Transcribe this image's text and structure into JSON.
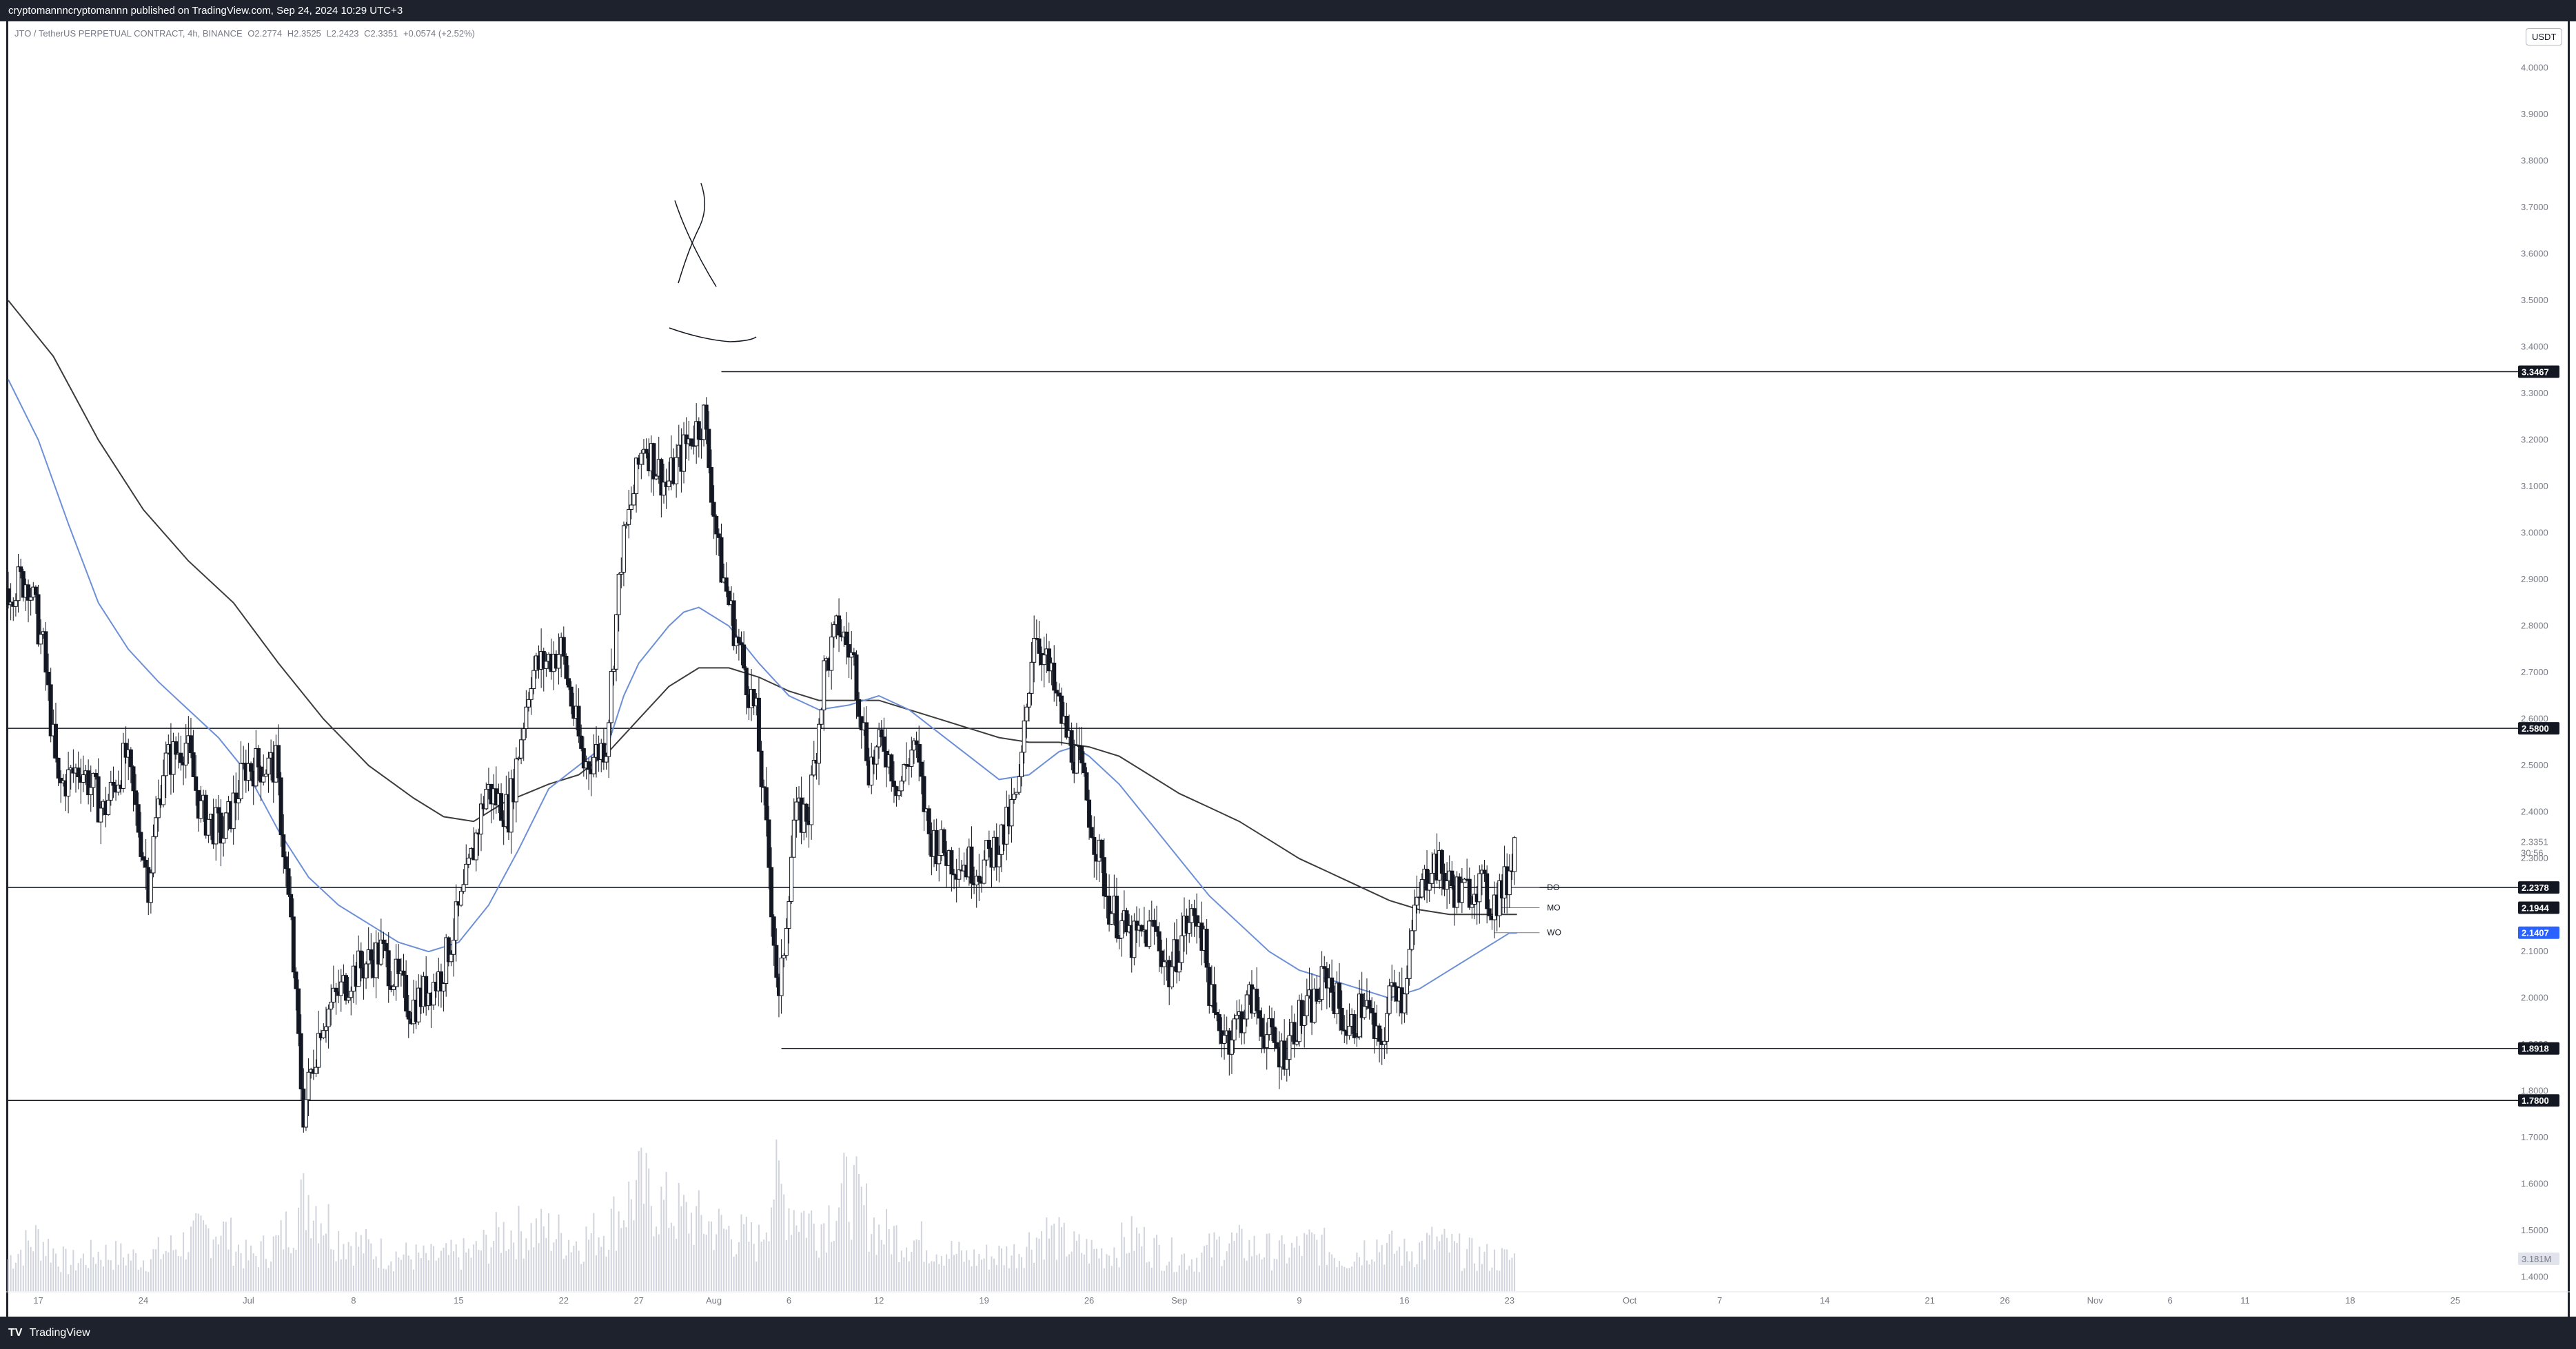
{
  "header": {
    "publish_text": "cryptomannncryptomannn published on TradingView.com, Sep 24, 2024 10:29 UTC+3"
  },
  "legend": {
    "symbol": "JTO / TetherUS PERPETUAL CONTRACT, 4h, BINANCE",
    "open": "O2.2774",
    "high": "H2.3525",
    "low": "L2.2423",
    "close": "C2.3351",
    "change": "+0.0574 (+2.52%)"
  },
  "currency_button": "USDT",
  "footer": {
    "brand": "TradingView",
    "logo_glyph": "TV"
  },
  "colors": {
    "horizontal_line": "#131722",
    "ma_black": "#3c3c3c",
    "ma_blue": "#6d8fd6",
    "candle": "#131722",
    "volume": "#d1d4dc",
    "badge_dark": "#131722",
    "badge_blue": "#2962ff"
  },
  "chart_data": {
    "type": "candlestick",
    "symbol": "JTO / TetherUS PERPETUAL CONTRACT",
    "interval": "4h",
    "exchange": "BINANCE",
    "ylim": [
      1.37,
      4.1
    ],
    "y_ticks": [
      "4.0000",
      "3.9000",
      "3.8000",
      "3.7000",
      "3.6000",
      "3.5000",
      "3.4000",
      "3.3000",
      "3.2000",
      "3.1000",
      "3.0000",
      "2.9000",
      "2.8000",
      "2.7000",
      "2.6000",
      "2.5000",
      "2.4000",
      "2.3000",
      "2.2000",
      "2.1000",
      "2.0000",
      "1.9000",
      "1.8000",
      "1.7000",
      "1.6000",
      "1.5000",
      "1.4000"
    ],
    "x_tick_labels": [
      {
        "day": 2,
        "label": "17"
      },
      {
        "day": 9,
        "label": "24"
      },
      {
        "day": 16,
        "label": "Jul"
      },
      {
        "day": 23,
        "label": "8"
      },
      {
        "day": 30,
        "label": "15"
      },
      {
        "day": 37,
        "label": "22"
      },
      {
        "day": 42,
        "label": "27"
      },
      {
        "day": 47,
        "label": "Aug"
      },
      {
        "day": 52,
        "label": "6"
      },
      {
        "day": 58,
        "label": "12"
      },
      {
        "day": 65,
        "label": "19"
      },
      {
        "day": 72,
        "label": "26"
      },
      {
        "day": 78,
        "label": "Sep"
      },
      {
        "day": 86,
        "label": "9"
      },
      {
        "day": 93,
        "label": "16"
      },
      {
        "day": 100,
        "label": "23"
      },
      {
        "day": 108,
        "label": "Oct"
      },
      {
        "day": 114,
        "label": "7"
      },
      {
        "day": 121,
        "label": "14"
      },
      {
        "day": 128,
        "label": "21"
      },
      {
        "day": 133,
        "label": "26"
      },
      {
        "day": 139,
        "label": "Nov"
      },
      {
        "day": 144,
        "label": "6"
      },
      {
        "day": 149,
        "label": "11"
      },
      {
        "day": 156,
        "label": "18"
      },
      {
        "day": 163,
        "label": "25"
      }
    ],
    "x_range_days": [
      0,
      167
    ],
    "price_path": [
      [
        0,
        2.88
      ],
      [
        1.5,
        2.9
      ],
      [
        2.5,
        2.75
      ],
      [
        3.5,
        2.45
      ],
      [
        5,
        2.5
      ],
      [
        6.5,
        2.4
      ],
      [
        8,
        2.52
      ],
      [
        9.5,
        2.25
      ],
      [
        10.5,
        2.5
      ],
      [
        12,
        2.55
      ],
      [
        13,
        2.4
      ],
      [
        14.5,
        2.35
      ],
      [
        16,
        2.5
      ],
      [
        18,
        2.5
      ],
      [
        19,
        2.15
      ],
      [
        19.8,
        1.75
      ],
      [
        21,
        1.95
      ],
      [
        23,
        2.05
      ],
      [
        25,
        2.1
      ],
      [
        27,
        1.98
      ],
      [
        29,
        2.05
      ],
      [
        30.5,
        2.22
      ],
      [
        32,
        2.45
      ],
      [
        33.5,
        2.4
      ],
      [
        35,
        2.7
      ],
      [
        37,
        2.75
      ],
      [
        38.5,
        2.5
      ],
      [
        40,
        2.55
      ],
      [
        41,
        2.95
      ],
      [
        42.5,
        3.2
      ],
      [
        44,
        3.1
      ],
      [
        45.5,
        3.2
      ],
      [
        46.5,
        3.25
      ],
      [
        47.5,
        2.95
      ],
      [
        48.5,
        2.8
      ],
      [
        50,
        2.6
      ],
      [
        50.8,
        2.3
      ],
      [
        51.5,
        1.98
      ],
      [
        52.5,
        2.38
      ],
      [
        53.5,
        2.4
      ],
      [
        54.5,
        2.7
      ],
      [
        55.5,
        2.8
      ],
      [
        56.5,
        2.72
      ],
      [
        57.5,
        2.5
      ],
      [
        58.5,
        2.55
      ],
      [
        59.5,
        2.45
      ],
      [
        60.5,
        2.55
      ],
      [
        61.5,
        2.35
      ],
      [
        63,
        2.3
      ],
      [
        65,
        2.28
      ],
      [
        66.5,
        2.35
      ],
      [
        67.5,
        2.45
      ],
      [
        68.5,
        2.8
      ],
      [
        69.5,
        2.7
      ],
      [
        70.5,
        2.58
      ],
      [
        71.5,
        2.5
      ],
      [
        72.5,
        2.35
      ],
      [
        73.5,
        2.2
      ],
      [
        75,
        2.12
      ],
      [
        76.5,
        2.15
      ],
      [
        77.5,
        2.05
      ],
      [
        78.5,
        2.15
      ],
      [
        79.5,
        2.18
      ],
      [
        80.5,
        1.95
      ],
      [
        81.5,
        1.92
      ],
      [
        83,
        2.0
      ],
      [
        84,
        1.92
      ],
      [
        85,
        1.88
      ],
      [
        86,
        1.95
      ],
      [
        87,
        1.98
      ],
      [
        88,
        2.05
      ],
      [
        89.5,
        1.92
      ],
      [
        90.5,
        2.0
      ],
      [
        91.5,
        1.88
      ],
      [
        92.5,
        2.05
      ],
      [
        93,
        2.0
      ],
      [
        94,
        2.2
      ],
      [
        95,
        2.3
      ],
      [
        96,
        2.25
      ],
      [
        97,
        2.22
      ],
      [
        98,
        2.25
      ],
      [
        99,
        2.2
      ],
      [
        100,
        2.25
      ],
      [
        100.5,
        2.34
      ]
    ],
    "ma_series": [
      {
        "color_key": "ma_black",
        "points": [
          [
            0,
            3.5
          ],
          [
            3,
            3.38
          ],
          [
            6,
            3.2
          ],
          [
            9,
            3.05
          ],
          [
            12,
            2.94
          ],
          [
            15,
            2.85
          ],
          [
            18,
            2.72
          ],
          [
            21,
            2.6
          ],
          [
            24,
            2.5
          ],
          [
            27,
            2.43
          ],
          [
            29,
            2.39
          ],
          [
            31,
            2.38
          ],
          [
            33,
            2.42
          ],
          [
            36,
            2.46
          ],
          [
            38,
            2.48
          ],
          [
            40,
            2.53
          ],
          [
            42,
            2.6
          ],
          [
            44,
            2.67
          ],
          [
            46,
            2.71
          ],
          [
            48,
            2.71
          ],
          [
            50,
            2.69
          ],
          [
            52,
            2.66
          ],
          [
            54,
            2.64
          ],
          [
            56,
            2.64
          ],
          [
            58,
            2.64
          ],
          [
            60,
            2.62
          ],
          [
            62,
            2.6
          ],
          [
            64,
            2.58
          ],
          [
            66,
            2.56
          ],
          [
            68,
            2.55
          ],
          [
            70,
            2.55
          ],
          [
            72,
            2.54
          ],
          [
            74,
            2.52
          ],
          [
            76,
            2.48
          ],
          [
            78,
            2.44
          ],
          [
            80,
            2.41
          ],
          [
            82,
            2.38
          ],
          [
            84,
            2.34
          ],
          [
            86,
            2.3
          ],
          [
            88,
            2.27
          ],
          [
            90,
            2.24
          ],
          [
            92,
            2.21
          ],
          [
            94,
            2.19
          ],
          [
            96,
            2.18
          ],
          [
            98,
            2.18
          ],
          [
            100,
            2.18
          ],
          [
            100.5,
            2.18
          ]
        ]
      },
      {
        "color_key": "ma_blue",
        "points": [
          [
            0,
            3.33
          ],
          [
            2,
            3.2
          ],
          [
            4,
            3.02
          ],
          [
            6,
            2.85
          ],
          [
            8,
            2.75
          ],
          [
            10,
            2.68
          ],
          [
            12,
            2.62
          ],
          [
            14,
            2.56
          ],
          [
            16,
            2.48
          ],
          [
            18,
            2.36
          ],
          [
            20,
            2.26
          ],
          [
            22,
            2.2
          ],
          [
            24,
            2.16
          ],
          [
            26,
            2.12
          ],
          [
            28,
            2.1
          ],
          [
            30,
            2.12
          ],
          [
            32,
            2.2
          ],
          [
            34,
            2.32
          ],
          [
            36,
            2.45
          ],
          [
            38,
            2.5
          ],
          [
            40,
            2.55
          ],
          [
            41,
            2.65
          ],
          [
            42,
            2.72
          ],
          [
            44,
            2.8
          ],
          [
            45,
            2.83
          ],
          [
            46,
            2.84
          ],
          [
            48,
            2.8
          ],
          [
            50,
            2.72
          ],
          [
            52,
            2.65
          ],
          [
            54,
            2.62
          ],
          [
            56,
            2.63
          ],
          [
            58,
            2.65
          ],
          [
            60,
            2.62
          ],
          [
            62,
            2.57
          ],
          [
            64,
            2.52
          ],
          [
            66,
            2.47
          ],
          [
            68,
            2.48
          ],
          [
            70,
            2.53
          ],
          [
            71,
            2.54
          ],
          [
            72,
            2.52
          ],
          [
            74,
            2.46
          ],
          [
            76,
            2.38
          ],
          [
            78,
            2.3
          ],
          [
            80,
            2.22
          ],
          [
            82,
            2.16
          ],
          [
            84,
            2.1
          ],
          [
            86,
            2.06
          ],
          [
            88,
            2.04
          ],
          [
            90,
            2.02
          ],
          [
            92,
            2.0
          ],
          [
            94,
            2.02
          ],
          [
            96,
            2.06
          ],
          [
            98,
            2.1
          ],
          [
            99,
            2.12
          ],
          [
            100,
            2.14
          ],
          [
            100.5,
            2.14
          ]
        ]
      }
    ],
    "volume_profile": [
      [
        0,
        0.3
      ],
      [
        2,
        0.5
      ],
      [
        4,
        0.25
      ],
      [
        6,
        0.35
      ],
      [
        9,
        0.3
      ],
      [
        11,
        0.4
      ],
      [
        14,
        0.6
      ],
      [
        16,
        0.3
      ],
      [
        18,
        0.45
      ],
      [
        20,
        0.9
      ],
      [
        22,
        0.5
      ],
      [
        25,
        0.35
      ],
      [
        28,
        0.3
      ],
      [
        31,
        0.35
      ],
      [
        33,
        0.55
      ],
      [
        36,
        0.55
      ],
      [
        38,
        0.45
      ],
      [
        40,
        0.6
      ],
      [
        42,
        0.95
      ],
      [
        44,
        0.75
      ],
      [
        46,
        0.65
      ],
      [
        48,
        0.55
      ],
      [
        50,
        0.45
      ],
      [
        51,
        1.0
      ],
      [
        52,
        0.8
      ],
      [
        54,
        0.6
      ],
      [
        56,
        0.95
      ],
      [
        58,
        0.55
      ],
      [
        61,
        0.45
      ],
      [
        64,
        0.3
      ],
      [
        67,
        0.35
      ],
      [
        69,
        0.55
      ],
      [
        71,
        0.4
      ],
      [
        73,
        0.35
      ],
      [
        75,
        0.5
      ],
      [
        77,
        0.35
      ],
      [
        79,
        0.3
      ],
      [
        81,
        0.45
      ],
      [
        83,
        0.4
      ],
      [
        85,
        0.35
      ],
      [
        87,
        0.45
      ],
      [
        89,
        0.3
      ],
      [
        91,
        0.45
      ],
      [
        93,
        0.35
      ],
      [
        95,
        0.45
      ],
      [
        97,
        0.35
      ],
      [
        99,
        0.3
      ],
      [
        100.5,
        0.3
      ]
    ],
    "horizontal_levels": [
      {
        "price": 3.3467,
        "label": "3.3467",
        "start_day": 47.5,
        "badge": "dark"
      },
      {
        "price": 2.58,
        "label": "2.5800",
        "start_day": 0,
        "badge": "dark"
      },
      {
        "price": 2.2378,
        "label": "2.2378",
        "start_day": 0,
        "badge": "dark"
      },
      {
        "price": 1.8918,
        "label": "1.8918",
        "start_day": 51.5,
        "badge": "dark"
      },
      {
        "price": 1.78,
        "label": "1.7800",
        "start_day": 0,
        "badge": "dark"
      }
    ],
    "open_levels": [
      {
        "name": "DO",
        "price": 2.2378
      },
      {
        "name": "MO",
        "price": 2.1944
      },
      {
        "name": "WO",
        "price": 2.1407
      }
    ],
    "price_badges": [
      {
        "price": 2.3351,
        "label": "2.3351",
        "sub": "30:56",
        "style": "plain"
      },
      {
        "price": 2.1944,
        "label": "2.1944",
        "style": "dark"
      },
      {
        "price": 2.1407,
        "label": "2.1407",
        "style": "blue"
      }
    ],
    "volume_badge": "3.181M"
  }
}
